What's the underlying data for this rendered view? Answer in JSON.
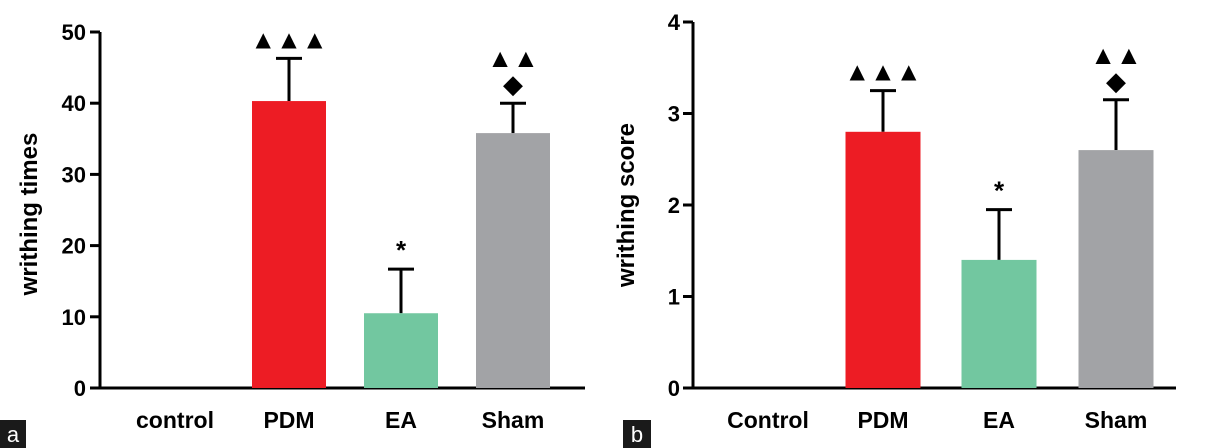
{
  "chart_data": [
    {
      "panel_label": "a",
      "type": "bar",
      "ylabel": "writhing times",
      "ylim": [
        0,
        50
      ],
      "yticks": [
        0,
        10,
        20,
        30,
        40,
        50
      ],
      "categories": [
        "control",
        "PDM",
        "EA",
        "Sham"
      ],
      "values": [
        0,
        40.3,
        10.5,
        35.8
      ],
      "errors": [
        0,
        6.0,
        6.2,
        4.2
      ],
      "colors": [
        "#ffffff",
        "#ed1c24",
        "#72c7a0",
        "#a2a3a6"
      ],
      "significance": [
        "",
        "▲▲▲",
        "*",
        "▲▲\n◆"
      ]
    },
    {
      "panel_label": "b",
      "type": "bar",
      "ylabel": "writhing score",
      "ylim": [
        0,
        4
      ],
      "yticks": [
        0,
        1,
        2,
        3,
        4
      ],
      "categories": [
        "Control",
        "PDM",
        "EA",
        "Sham"
      ],
      "values": [
        0,
        2.8,
        1.4,
        2.6
      ],
      "errors": [
        0,
        0.45,
        0.55,
        0.55
      ],
      "colors": [
        "#ffffff",
        "#ed1c24",
        "#72c7a0",
        "#a2a3a6"
      ],
      "significance": [
        "",
        "▲▲▲",
        "*",
        "▲▲\n◆"
      ]
    }
  ]
}
